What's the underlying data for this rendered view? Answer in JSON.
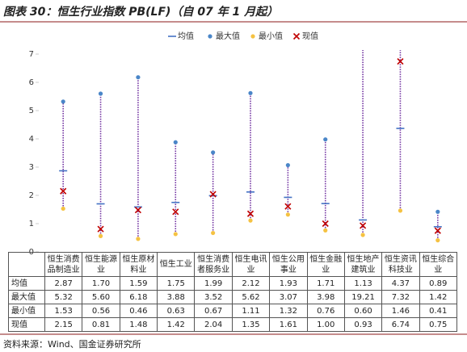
{
  "chart_data": {
    "type": "range_dot",
    "title": "图表 30：恒生行业指数 PB(LF)（自 07 年 1 月起）",
    "source": "资料来源：Wind、国金证券研究所",
    "categories": [
      "恒生消费品制造业",
      "恒生能源业",
      "恒生原材料业",
      "恒生工业",
      "恒生消费者服务业",
      "恒生电讯业",
      "恒生公用事业",
      "恒生金融业",
      "恒生地产建筑业",
      "恒生资讯科技业",
      "恒生综合业"
    ],
    "series": [
      {
        "name": "均值",
        "color": "#4472c4",
        "marker": "dash",
        "values": [
          2.87,
          1.7,
          1.59,
          1.75,
          1.99,
          2.12,
          1.93,
          1.71,
          1.13,
          4.37,
          0.89
        ],
        "value_labels": [
          "2.87",
          "1.70",
          "1.59",
          "1.75",
          "1.99",
          "2.12",
          "1.93",
          "1.71",
          "1.13",
          "4.37",
          "0.89"
        ]
      },
      {
        "name": "最大值",
        "color": "#4a86c8",
        "marker": "circle",
        "values": [
          5.32,
          5.6,
          6.18,
          3.88,
          3.52,
          5.62,
          3.07,
          3.98,
          19.21,
          7.32,
          1.42
        ],
        "value_labels": [
          "5.32",
          "5.60",
          "6.18",
          "3.88",
          "3.52",
          "5.62",
          "3.07",
          "3.98",
          "19.21",
          "7.32",
          "1.42"
        ]
      },
      {
        "name": "最小值",
        "color": "#f5c242",
        "marker": "circle",
        "values": [
          1.53,
          0.56,
          0.46,
          0.63,
          0.67,
          1.11,
          1.32,
          0.76,
          0.6,
          1.46,
          0.41
        ],
        "value_labels": [
          "1.53",
          "0.56",
          "0.46",
          "0.63",
          "0.67",
          "1.11",
          "1.32",
          "0.76",
          "0.60",
          "1.46",
          "0.41"
        ]
      },
      {
        "name": "现值",
        "color": "#c00000",
        "marker": "x",
        "values": [
          2.15,
          0.81,
          1.48,
          1.42,
          2.04,
          1.35,
          1.61,
          1.0,
          0.93,
          6.74,
          0.75
        ],
        "value_labels": [
          "2.15",
          "0.81",
          "1.48",
          "1.42",
          "2.04",
          "1.35",
          "1.61",
          "1.00",
          "0.93",
          "6.74",
          "0.75"
        ]
      }
    ],
    "range_color": "#7030a0",
    "ylim": [
      0,
      7
    ],
    "yticks": [
      0,
      1,
      2,
      3,
      4,
      5,
      6,
      7
    ]
  }
}
